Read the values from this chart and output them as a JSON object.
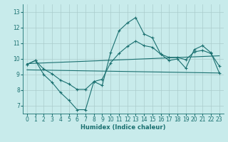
{
  "xlabel": "Humidex (Indice chaleur)",
  "bg_color": "#c8ebeb",
  "grid_color": "#aacccc",
  "line_color": "#1a7070",
  "xlim": [
    -0.5,
    23.5
  ],
  "ylim": [
    6.5,
    13.5
  ],
  "yticks": [
    7,
    8,
    9,
    10,
    11,
    12,
    13
  ],
  "xticks": [
    0,
    1,
    2,
    3,
    4,
    5,
    6,
    7,
    8,
    9,
    10,
    11,
    12,
    13,
    14,
    15,
    16,
    17,
    18,
    19,
    20,
    21,
    22,
    23
  ],
  "line1_x": [
    0,
    1,
    2,
    3,
    4,
    5,
    6,
    7,
    8,
    9,
    10,
    11,
    12,
    13,
    14,
    15,
    16,
    17,
    18,
    19,
    20,
    21,
    22,
    23
  ],
  "line1_y": [
    9.65,
    9.9,
    9.0,
    8.5,
    7.85,
    7.35,
    6.75,
    6.75,
    8.55,
    8.3,
    10.4,
    11.8,
    12.3,
    12.65,
    11.6,
    11.35,
    10.3,
    9.9,
    10.0,
    9.4,
    10.6,
    10.85,
    10.4,
    9.1
  ],
  "line2_x": [
    0,
    1,
    2,
    3,
    4,
    5,
    6,
    7,
    8,
    9,
    10,
    11,
    12,
    13,
    14,
    15,
    16,
    17,
    18,
    19,
    20,
    21,
    22,
    23
  ],
  "line2_y": [
    9.65,
    9.9,
    9.35,
    9.05,
    8.65,
    8.4,
    8.05,
    8.05,
    8.55,
    8.7,
    9.75,
    10.35,
    10.8,
    11.15,
    10.85,
    10.75,
    10.3,
    10.1,
    10.1,
    9.95,
    10.45,
    10.55,
    10.35,
    9.55
  ],
  "line3_x": [
    0,
    23
  ],
  "line3_y": [
    9.3,
    9.1
  ],
  "line4_x": [
    0,
    23
  ],
  "line4_y": [
    9.7,
    10.2
  ],
  "xlabel_fontsize": 6,
  "tick_fontsize": 5.5
}
